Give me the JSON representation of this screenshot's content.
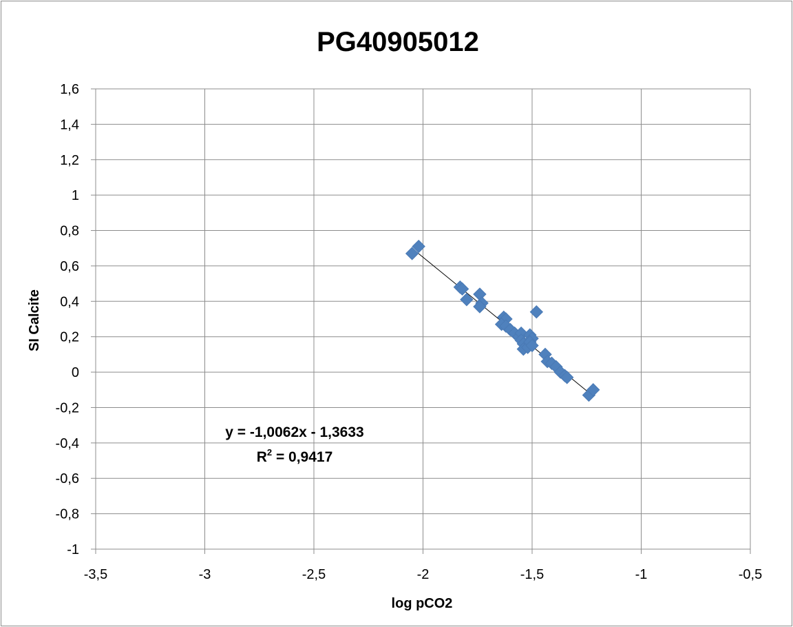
{
  "chart_data": {
    "type": "scatter",
    "title": "PG40905012",
    "xlabel": "log pCO2",
    "ylabel": "SI Calcite",
    "xlim": [
      -3.5,
      -0.5
    ],
    "ylim": [
      -1,
      1.6
    ],
    "x_ticks": [
      -3.5,
      -3,
      -2.5,
      -2,
      -1.5,
      -1,
      -0.5
    ],
    "x_tick_labels": [
      "-3,5",
      "-3",
      "-2,5",
      "-2",
      "-1,5",
      "-1",
      "-0,5"
    ],
    "y_ticks": [
      -1,
      -0.8,
      -0.6,
      -0.4,
      -0.2,
      0,
      0.2,
      0.4,
      0.6,
      0.8,
      1,
      1.2,
      1.4,
      1.6
    ],
    "y_tick_labels": [
      "-1",
      "-0,8",
      "-0,6",
      "-0,4",
      "-0,2",
      "0",
      "0,2",
      "0,4",
      "0,6",
      "0,8",
      "1",
      "1,2",
      "1,4",
      "1,6"
    ],
    "grid": true,
    "marker": "diamond",
    "series_color": "#4f81bd",
    "trendline_color": "#000000",
    "series": [
      {
        "points": [
          {
            "x": -2.05,
            "y": 0.67
          },
          {
            "x": -2.02,
            "y": 0.71
          },
          {
            "x": -1.83,
            "y": 0.48
          },
          {
            "x": -1.82,
            "y": 0.47
          },
          {
            "x": -1.8,
            "y": 0.41
          },
          {
            "x": -1.74,
            "y": 0.44
          },
          {
            "x": -1.73,
            "y": 0.39
          },
          {
            "x": -1.74,
            "y": 0.37
          },
          {
            "x": -1.63,
            "y": 0.31
          },
          {
            "x": -1.62,
            "y": 0.3
          },
          {
            "x": -1.64,
            "y": 0.27
          },
          {
            "x": -1.62,
            "y": 0.26
          },
          {
            "x": -1.6,
            "y": 0.24
          },
          {
            "x": -1.58,
            "y": 0.22
          },
          {
            "x": -1.56,
            "y": 0.2
          },
          {
            "x": -1.55,
            "y": 0.22
          },
          {
            "x": -1.55,
            "y": 0.18
          },
          {
            "x": -1.54,
            "y": 0.16
          },
          {
            "x": -1.54,
            "y": 0.13
          },
          {
            "x": -1.52,
            "y": 0.14
          },
          {
            "x": -1.51,
            "y": 0.21
          },
          {
            "x": -1.5,
            "y": 0.19
          },
          {
            "x": -1.51,
            "y": 0.17
          },
          {
            "x": -1.5,
            "y": 0.15
          },
          {
            "x": -1.48,
            "y": 0.34
          },
          {
            "x": -1.44,
            "y": 0.1
          },
          {
            "x": -1.43,
            "y": 0.06
          },
          {
            "x": -1.41,
            "y": 0.05
          },
          {
            "x": -1.39,
            "y": 0.03
          },
          {
            "x": -1.37,
            "y": 0.0
          },
          {
            "x": -1.35,
            "y": -0.02
          },
          {
            "x": -1.34,
            "y": -0.03
          },
          {
            "x": -1.24,
            "y": -0.13
          },
          {
            "x": -1.22,
            "y": -0.1
          }
        ]
      }
    ],
    "trendline": {
      "slope": -1.0062,
      "intercept": -1.3633,
      "x_range": [
        -2.04,
        -1.23
      ],
      "equation_label": "y = -1,0062x - 1,3633",
      "r2_prefix": "R",
      "r2_sup": "2",
      "r2_suffix": " = 0,9417"
    }
  }
}
